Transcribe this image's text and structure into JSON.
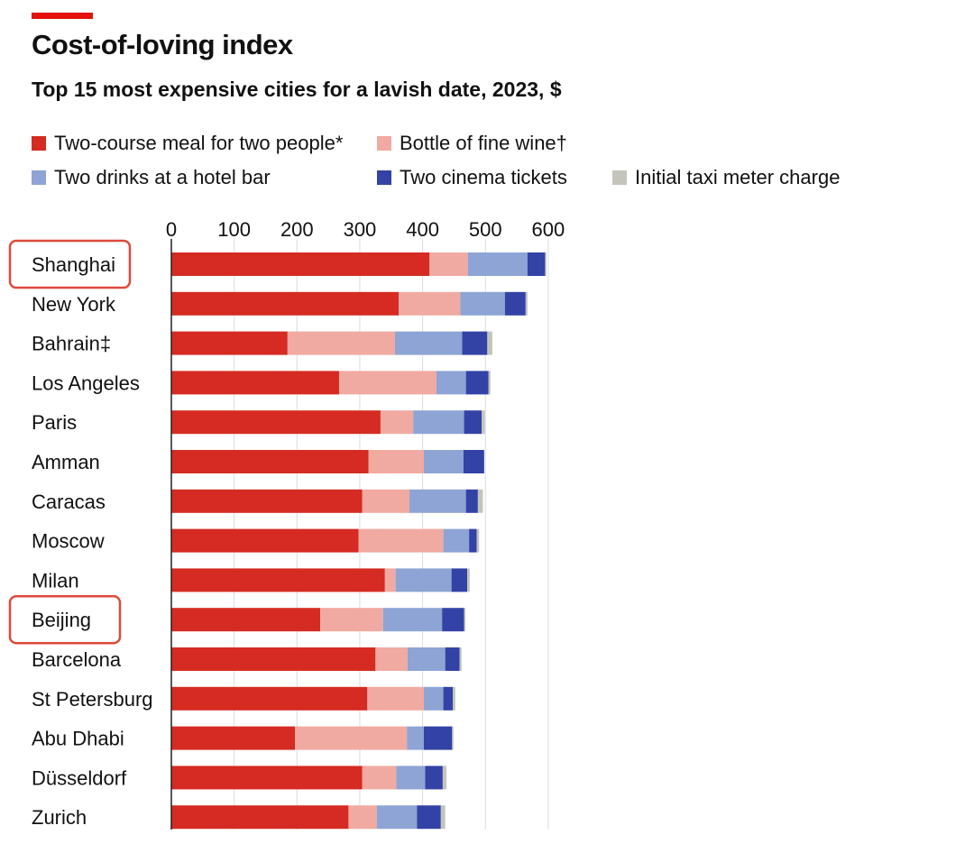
{
  "chart_data": {
    "type": "bar",
    "orientation": "horizontal",
    "stacked": true,
    "title": "Cost-of-loving index",
    "subtitle": "Top 15 most expensive cities for a lavish date, 2023, $",
    "xlim": [
      0,
      600
    ],
    "x_ticks": [
      0,
      100,
      200,
      300,
      400,
      500,
      600
    ],
    "grid": true,
    "legend_position": "top",
    "categories": [
      "Shanghai",
      "New York",
      "Bahrain‡",
      "Los Angeles",
      "Paris",
      "Amman",
      "Caracas",
      "Moscow",
      "Milan",
      "Beijing",
      "Barcelona",
      "St Petersburg",
      "Abu Dhabi",
      "Düsseldorf",
      "Zurich"
    ],
    "highlighted": [
      "Shanghai",
      "Beijing"
    ],
    "series": [
      {
        "name": "Two-course meal for two people*",
        "color": "#d52b22",
        "values": [
          411,
          362,
          185,
          267,
          333,
          314,
          304,
          298,
          340,
          237,
          325,
          312,
          197,
          304,
          282
        ]
      },
      {
        "name": "Bottle of fine wine†",
        "color": "#f0aaa1",
        "values": [
          61,
          98,
          171,
          155,
          52,
          88,
          75,
          135,
          17,
          100,
          51,
          90,
          178,
          54,
          45
        ]
      },
      {
        "name": "Two drinks at a hotel bar",
        "color": "#8da4d4",
        "values": [
          95,
          71,
          107,
          47,
          81,
          63,
          90,
          41,
          89,
          94,
          60,
          31,
          27,
          46,
          64
        ]
      },
      {
        "name": "Two cinema tickets",
        "color": "#3342a5",
        "values": [
          28,
          33,
          40,
          36,
          28,
          33,
          19,
          12,
          25,
          35,
          23,
          15,
          45,
          28,
          38
        ]
      },
      {
        "name": "Initial taxi meter charge",
        "color": "#c4c4bc",
        "values": [
          2,
          3,
          8,
          3,
          5,
          0,
          8,
          4,
          4,
          2,
          3,
          4,
          2,
          6,
          7
        ]
      }
    ]
  }
}
